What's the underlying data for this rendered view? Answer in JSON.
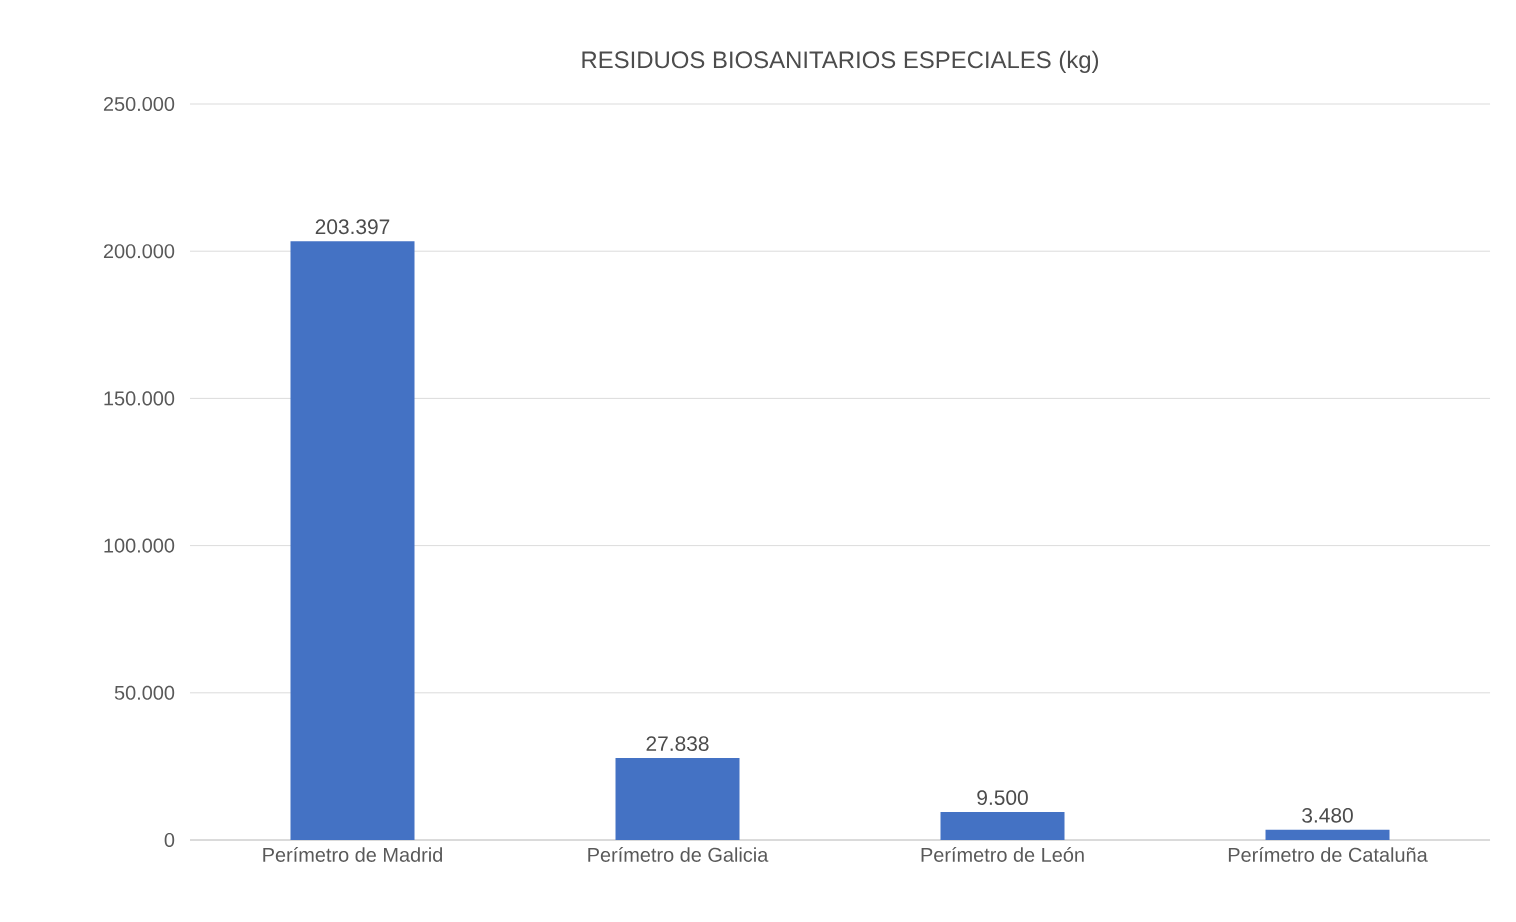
{
  "chart_data": {
    "type": "bar",
    "title": "RESIDUOS BIOSANITARIOS ESPECIALES (kg)",
    "categories": [
      "Perímetro de Madrid",
      "Perímetro de Galicia",
      "Perímetro de León",
      "Perímetro de Cataluña"
    ],
    "values": [
      203397,
      27838,
      9500,
      3480
    ],
    "value_labels": [
      "203.397",
      "27.838",
      "9.500",
      "3.480"
    ],
    "color": "#4472c4",
    "ylim": [
      0,
      250000
    ],
    "yticks": [
      {
        "value": 0,
        "label": "0"
      },
      {
        "value": 50000,
        "label": "50.000"
      },
      {
        "value": 100000,
        "label": "100.000"
      },
      {
        "value": 150000,
        "label": "150.000"
      },
      {
        "value": 200000,
        "label": "200.000"
      },
      {
        "value": 250000,
        "label": "250.000"
      }
    ],
    "grid": "y"
  }
}
